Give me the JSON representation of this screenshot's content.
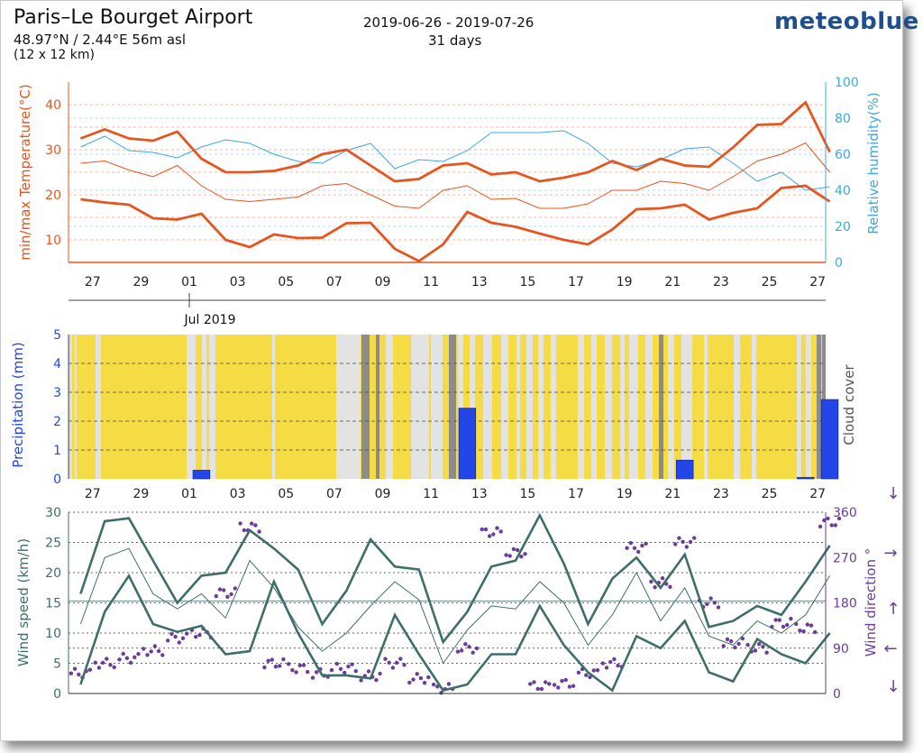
{
  "header": {
    "station": "Paris–Le Bourget Airport",
    "coords": "48.97°N / 2.44°E   56m asl",
    "grid": "(12 x 12 km)",
    "period": "2019-06-26 - 2019-07-26",
    "days": "31 days",
    "brand": "meteoblue"
  },
  "colors": {
    "temperature": "#e8541e",
    "humidity": "#3ea8e0",
    "precipitation": "#2446e8",
    "cloud_sunny": "#f5dc45",
    "cloud_partly": "#e3e3e3",
    "cloud_overcast": "#8c8c8c",
    "wind": "#3f6e6a",
    "wind_direction": "#6a3d9a"
  },
  "chart_data": [
    {
      "type": "line",
      "panel": "temperature_humidity",
      "x_dates": [
        "06-26",
        "06-27",
        "06-28",
        "06-29",
        "06-30",
        "07-01",
        "07-02",
        "07-03",
        "07-04",
        "07-05",
        "07-06",
        "07-07",
        "07-08",
        "07-09",
        "07-10",
        "07-11",
        "07-12",
        "07-13",
        "07-14",
        "07-15",
        "07-16",
        "07-17",
        "07-18",
        "07-19",
        "07-20",
        "07-21",
        "07-22",
        "07-23",
        "07-24",
        "07-25",
        "07-26",
        "07-27"
      ],
      "x_tick_labels": [
        "27",
        "29",
        "01",
        "03",
        "05",
        "07",
        "09",
        "11",
        "13",
        "15",
        "17",
        "19",
        "21",
        "23",
        "25",
        "27"
      ],
      "month_label": "Jul 2019",
      "ylabel_left": "min/max Temperature(°C)",
      "ylabel_right": "Relative humidity(%)",
      "ylim_left": [
        5,
        45
      ],
      "ylim_right": [
        0,
        100
      ],
      "yticks_left": [
        10,
        20,
        30,
        40
      ],
      "yticks_right": [
        0,
        20,
        40,
        60,
        80,
        100
      ],
      "series": [
        {
          "role": "temp_max",
          "values": [
            32.5,
            34.5,
            32.5,
            32,
            34,
            28,
            25,
            25,
            25.3,
            26.5,
            29,
            30,
            26.5,
            23,
            23.5,
            26.5,
            27,
            24.5,
            25,
            23,
            23.8,
            25,
            27.5,
            25.5,
            28,
            26.5,
            26.2,
            30.5,
            35.5,
            35.7,
            40.5,
            29.5
          ]
        },
        {
          "role": "temp_mean",
          "values": [
            27,
            27.5,
            25.5,
            24,
            26.5,
            22,
            19,
            18.5,
            19,
            19.5,
            22,
            22.5,
            20,
            17.5,
            17,
            21,
            22,
            19,
            19.2,
            17,
            17,
            18,
            21,
            21,
            23,
            22.5,
            21,
            24,
            27.5,
            29,
            31.5,
            25
          ]
        },
        {
          "role": "temp_min",
          "values": [
            19,
            18.3,
            17.8,
            14.8,
            14.5,
            15.8,
            10,
            8.4,
            11.2,
            10.4,
            10.5,
            13.7,
            13.8,
            8,
            5.3,
            9,
            16.2,
            13.8,
            12.9,
            11.4,
            10,
            9,
            12.3,
            16.8,
            17,
            17.8,
            14.5,
            16,
            17,
            21.5,
            22,
            18.5
          ]
        },
        {
          "role": "humidity",
          "values": [
            64,
            70,
            62,
            61,
            58,
            64,
            68,
            66,
            60,
            56,
            55,
            62,
            66,
            52,
            57,
            56,
            62,
            72,
            72,
            72,
            73,
            66,
            55,
            53,
            57,
            63,
            64,
            55,
            45,
            50,
            40,
            42
          ]
        }
      ]
    },
    {
      "type": "bar",
      "panel": "precipitation_cloud",
      "ylabel_left": "Precipitation (mm)",
      "ylabel_right": "Cloud cover",
      "ylim": [
        0,
        5
      ],
      "yticks": [
        0,
        1,
        2,
        3,
        4,
        5
      ],
      "x_tick_labels": [
        "27",
        "29",
        "01",
        "03",
        "05",
        "07",
        "09",
        "11",
        "13",
        "15",
        "17",
        "19",
        "21",
        "23",
        "25",
        "27"
      ],
      "bars": [
        {
          "date": "07-01",
          "value": 0.3
        },
        {
          "date": "07-12",
          "value": 2.45
        },
        {
          "date": "07-21",
          "value": 0.65
        },
        {
          "date": "07-26",
          "value": 0.05
        },
        {
          "date": "07-27",
          "value": 2.75
        }
      ]
    },
    {
      "type": "line",
      "panel": "wind",
      "ylabel_left": "Wind speed (km/h)",
      "ylabel_right": "Wind direction °",
      "ylim_left": [
        0,
        30
      ],
      "ylim_right": [
        0,
        360
      ],
      "yticks_left": [
        0,
        5,
        10,
        15,
        20,
        25,
        30
      ],
      "yticks_right": [
        0,
        90,
        180,
        270,
        360
      ],
      "x_tick_labels": [
        "27",
        "29",
        "01",
        "03",
        "05",
        "07",
        "09",
        "11",
        "13",
        "15",
        "17",
        "19",
        "21",
        "23",
        "25",
        "27"
      ],
      "series": [
        {
          "role": "wind_max",
          "values": [
            16.5,
            28.5,
            29,
            22,
            15,
            19.5,
            20,
            27,
            24,
            20.5,
            11.5,
            17,
            25.5,
            21,
            20.5,
            8.5,
            13.5,
            21,
            22,
            29.5,
            21.5,
            11.5,
            19,
            22.5,
            17.5,
            23,
            11,
            12,
            14.5,
            13,
            18.5,
            24.5
          ]
        },
        {
          "role": "wind_mean",
          "values": [
            11.5,
            22.5,
            24,
            16.5,
            14,
            16.5,
            12.5,
            22,
            17.5,
            11,
            7,
            10,
            14.5,
            18.5,
            15.5,
            5,
            10.5,
            14.5,
            14,
            18.5,
            15,
            8,
            13,
            20,
            12,
            17.5,
            9.5,
            8,
            12,
            10,
            13,
            19.5
          ]
        },
        {
          "role": "wind_min",
          "values": [
            1.5,
            13.5,
            19.5,
            11.5,
            10.2,
            11.2,
            6.5,
            7,
            18.5,
            10,
            3,
            3,
            2.5,
            13,
            6.5,
            0.5,
            1.5,
            6.5,
            6.5,
            14.5,
            8,
            3.5,
            0.5,
            9.5,
            7.5,
            12,
            3.5,
            2,
            9,
            6.5,
            5,
            10
          ]
        },
        {
          "role": "wind_direction_deg",
          "values": [
            40,
            60,
            70,
            85,
            110,
            120,
            200,
            330,
            60,
            50,
            40,
            50,
            35,
            60,
            30,
            10,
            90,
            320,
            280,
            15,
            20,
            40,
            60,
            290,
            220,
            300,
            180,
            100,
            90,
            140,
            130,
            340
          ]
        }
      ]
    }
  ]
}
